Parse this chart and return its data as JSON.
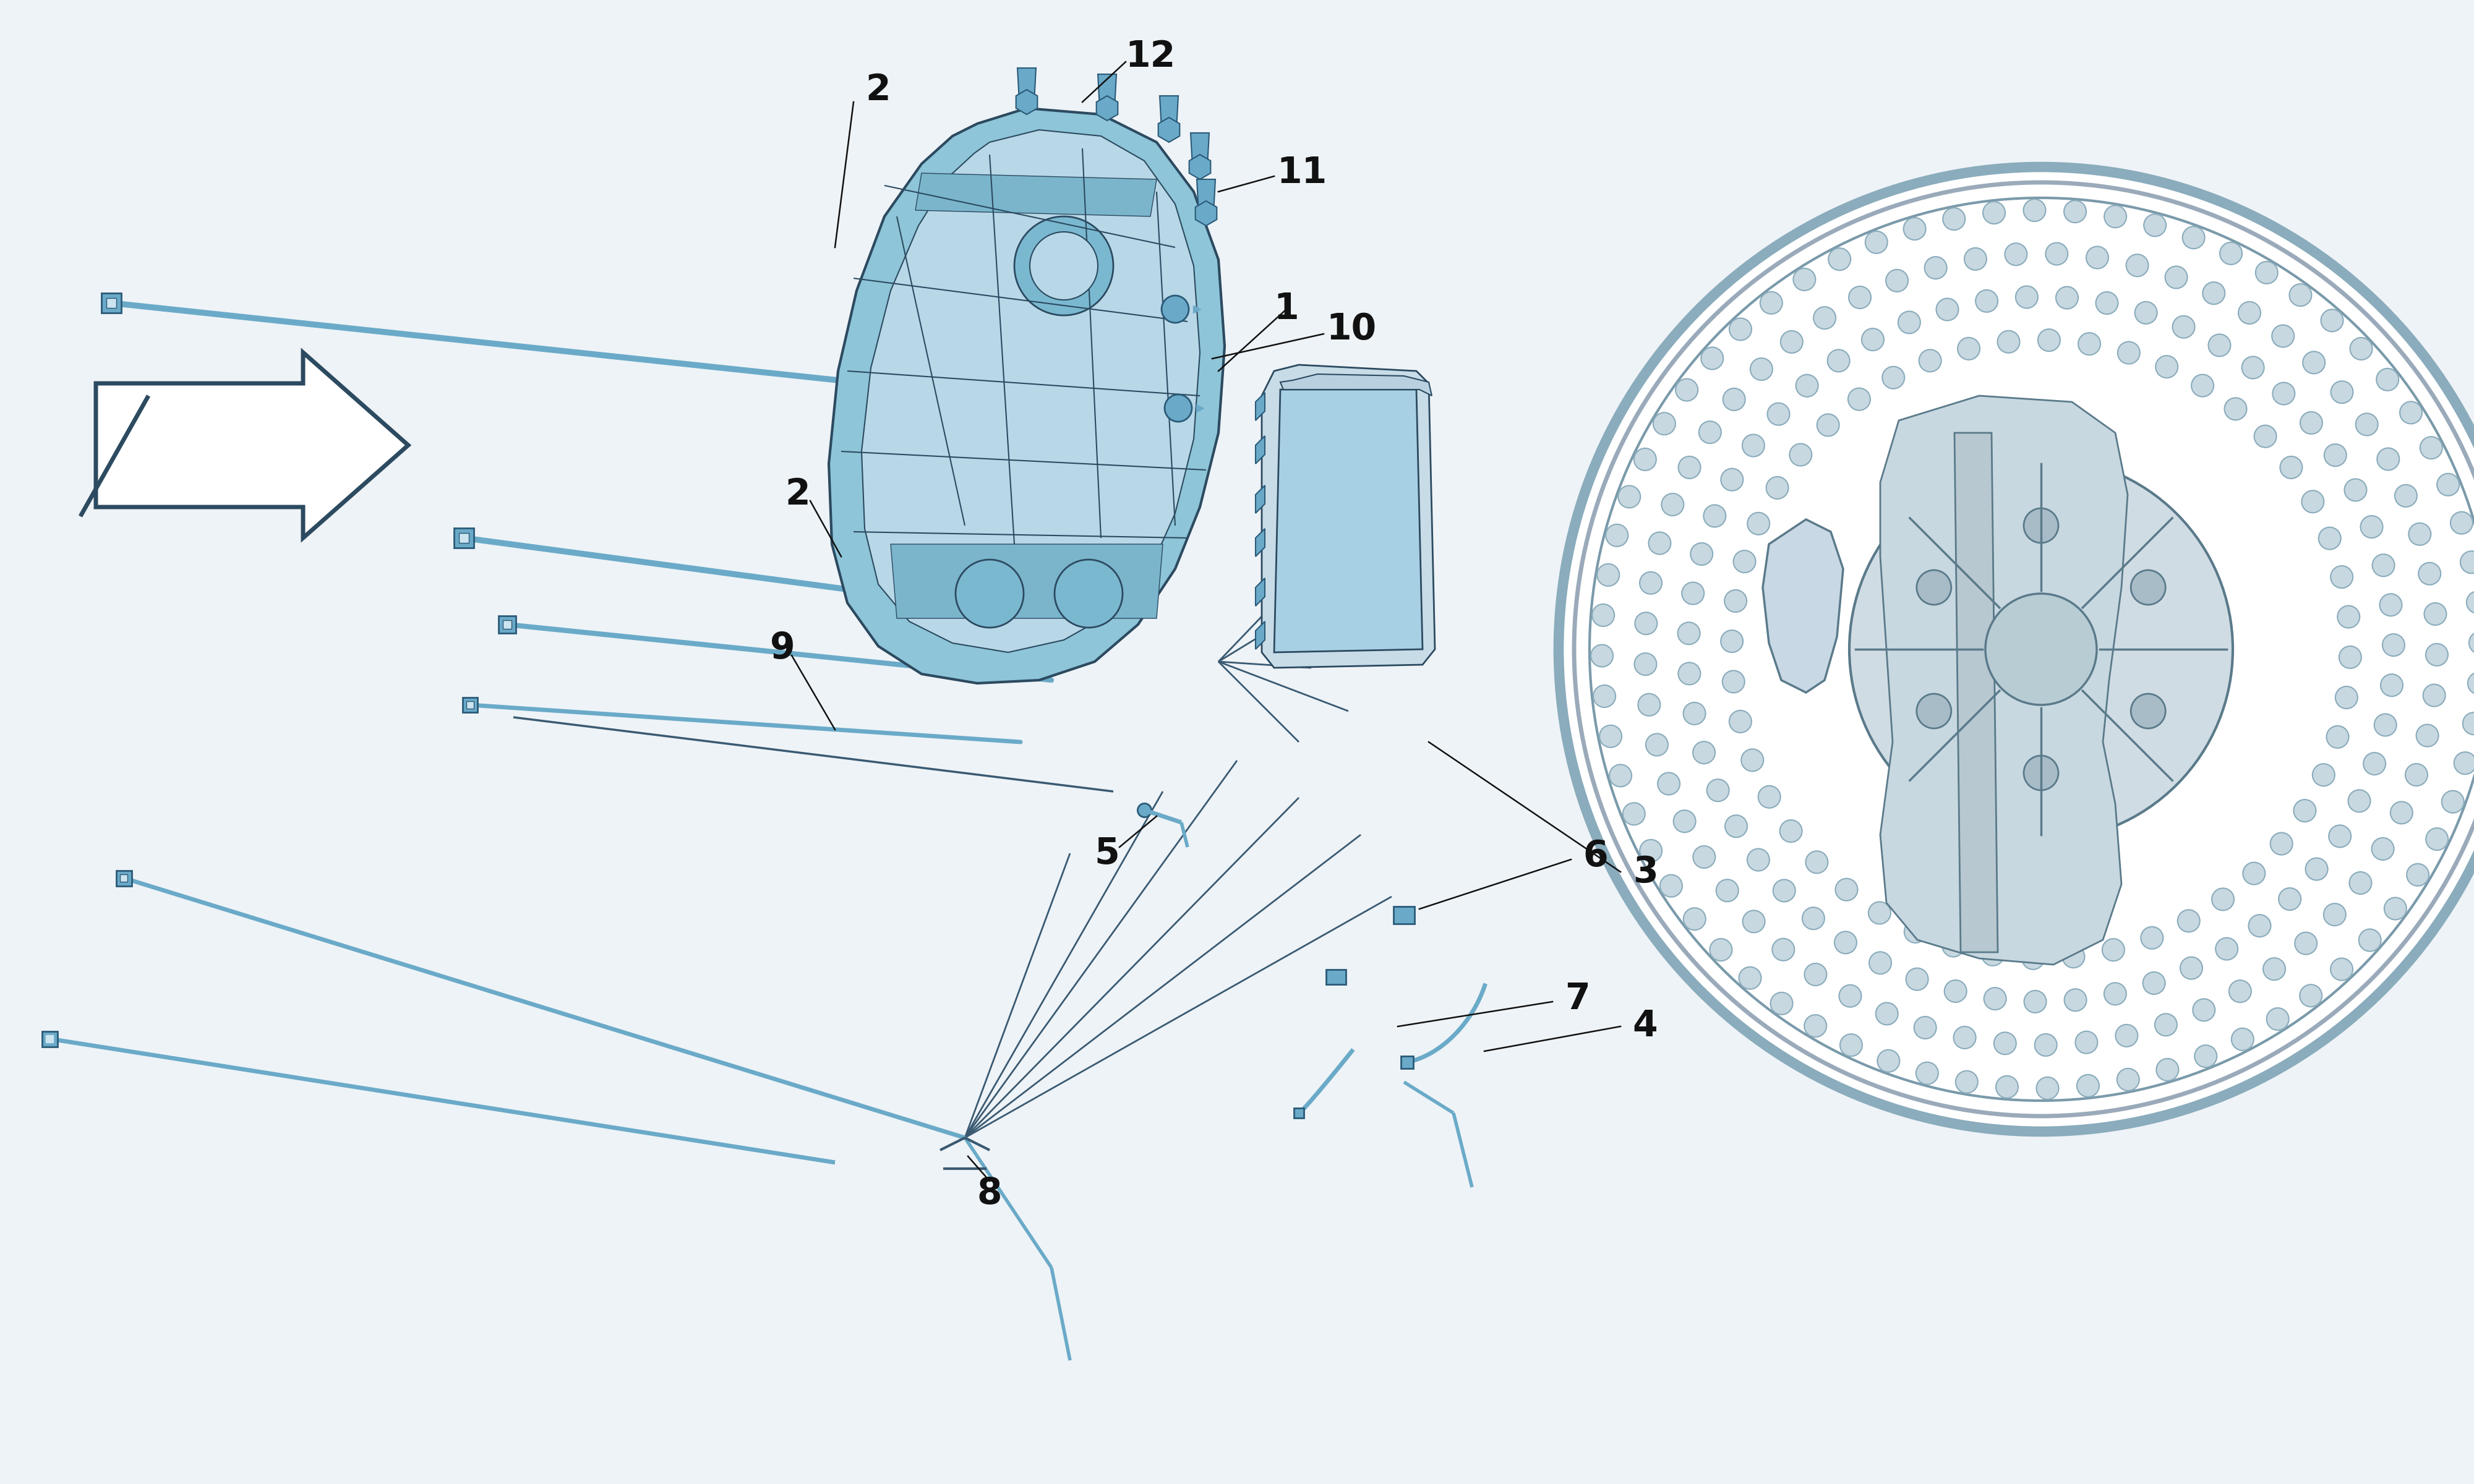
{
  "bg_color": "#eef3f7",
  "line_color_blue": "#5b9bbf",
  "line_color_dark": "#3a5a72",
  "line_color_outline": "#2c4a60",
  "calliper_fill": "#8ec5d8",
  "calliper_fill2": "#b8d8e8",
  "calliper_edge": "#2c4a60",
  "pad_fill": "#a8d0e4",
  "disc_fill": "#dde8ee",
  "disc_edge": "#7a9aaa",
  "bolt_color": "#6aaac8",
  "bolt_edge": "#2a5a78",
  "anno_color": "#111111",
  "font_size": 42,
  "white": "#ffffff",
  "light_blue": "#cce4f0"
}
